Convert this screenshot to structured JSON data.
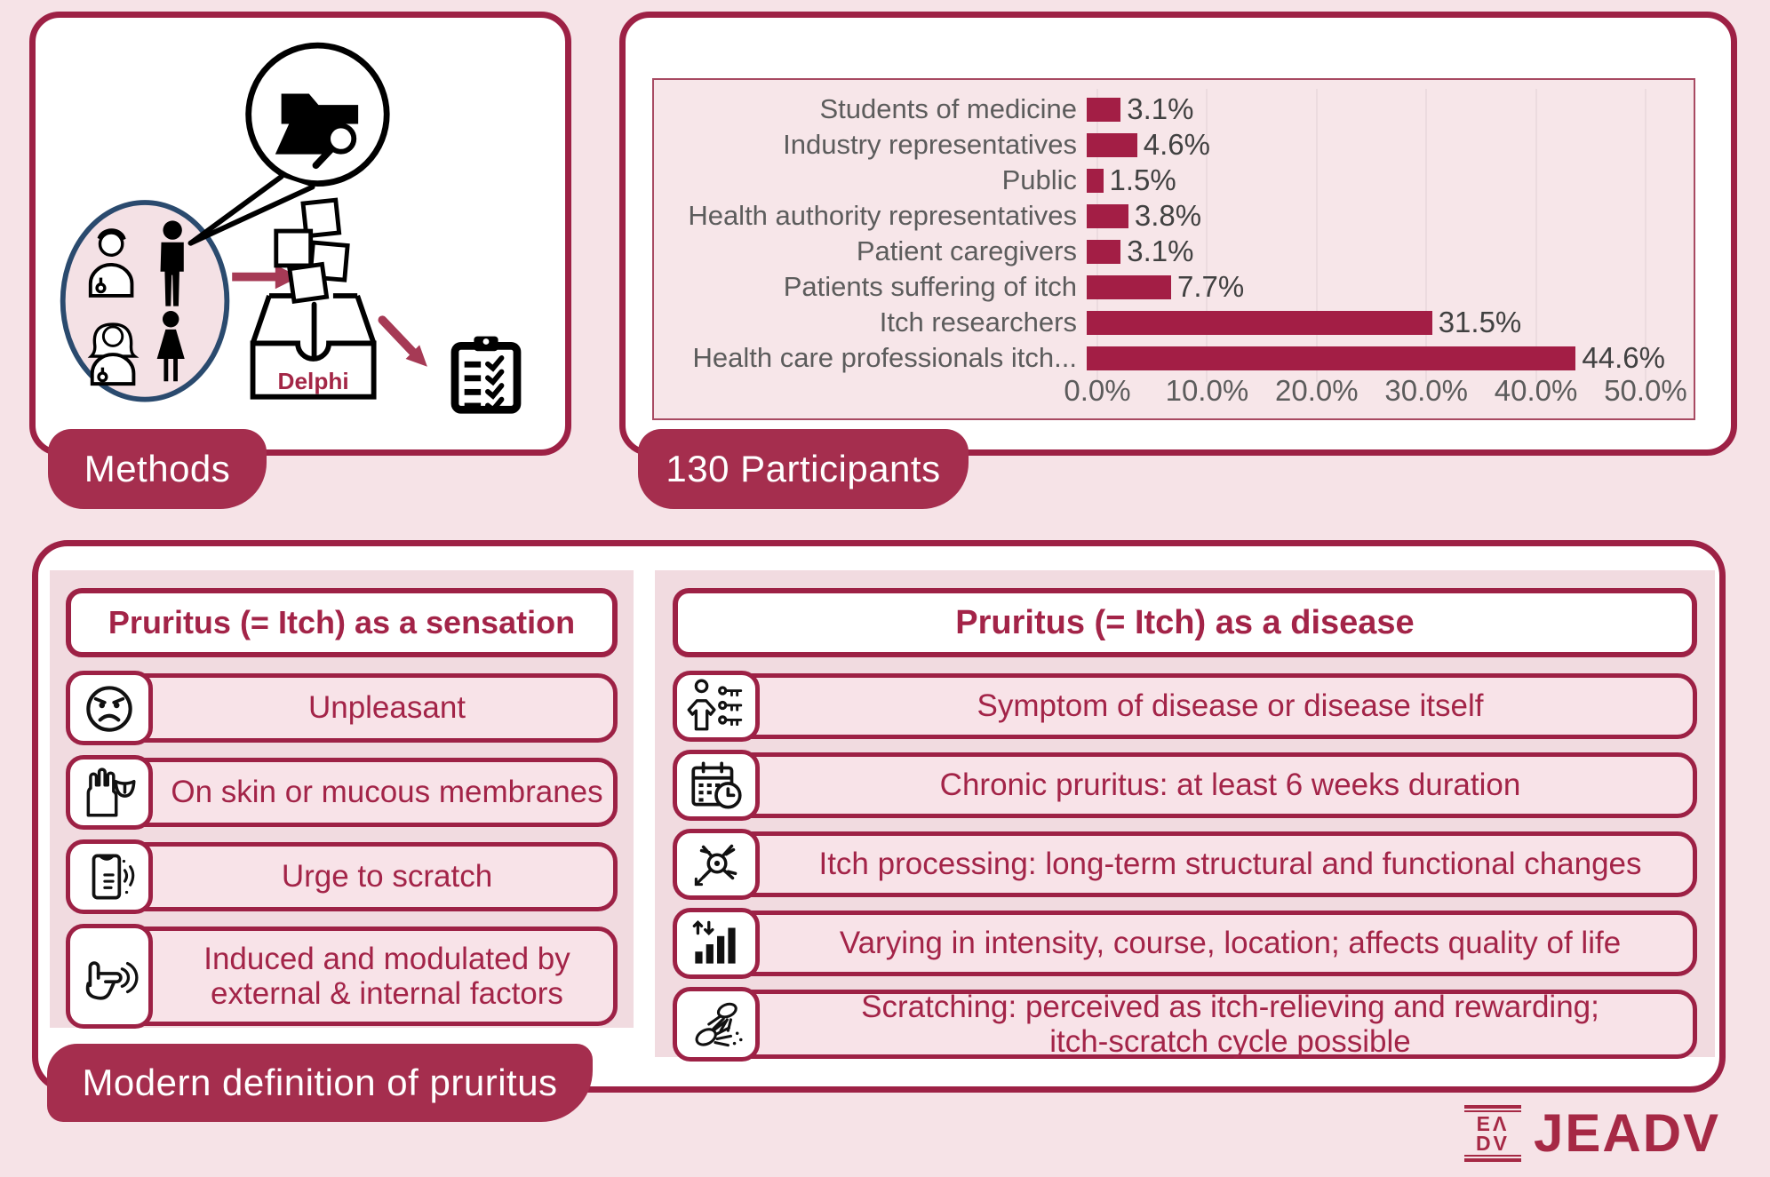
{
  "page": {
    "background": "#f6e3e7",
    "accent_border": "#9d2145",
    "badge_color": "#a52e4e",
    "bar_color": "#a31e45",
    "text_crimson": "#a32448"
  },
  "methods": {
    "badge_label": "Methods",
    "delphi_label": "Delphi",
    "illustration_icons": [
      "stakeholders-circle-icon",
      "doctor-male-icon",
      "patient-male-icon",
      "doctor-female-icon",
      "patient-female-icon",
      "literature-search-bubble-icon",
      "folder-search-icon",
      "sticky-notes-icon",
      "arrow-right-icon",
      "arrow-down-icon",
      "delphi-inbox-icon",
      "arrow-diagonal-icon",
      "checklist-clipboard-icon"
    ]
  },
  "participants": {
    "badge_label": "130 Participants"
  },
  "chart_data": {
    "type": "bar",
    "orientation": "horizontal",
    "title": "",
    "xlabel": "",
    "ylabel": "",
    "xlim": [
      0,
      50
    ],
    "grid": true,
    "legend": "none",
    "categories": [
      "Students of medicine",
      "Industry representatives",
      "Public",
      "Health authority representatives",
      "Patient caregivers",
      "Patients suffering of itch",
      "Itch researchers",
      "Health care professionals itch..."
    ],
    "values": [
      3.1,
      4.6,
      1.5,
      3.8,
      3.1,
      7.7,
      31.5,
      44.6
    ],
    "value_labels": [
      "3.1%",
      "4.6%",
      "1.5%",
      "3.8%",
      "3.1%",
      "7.7%",
      "31.5%",
      "44.6%"
    ],
    "x_ticks": [
      0,
      10,
      20,
      30,
      40,
      50
    ],
    "x_tick_labels": [
      "0.0%",
      "10.0%",
      "20.0%",
      "30.0%",
      "40.0%",
      "50.0%"
    ],
    "bar_color": "#a31e45"
  },
  "definition": {
    "badge_label": "Modern definition of pruritus",
    "sensation": {
      "title": "Pruritus (= Itch) as a sensation",
      "items": [
        {
          "icon": "angry-face-icon",
          "text": "Unpleasant",
          "tall": false
        },
        {
          "icon": "hand-tongue-icon",
          "text": "On skin or mucous membranes",
          "tall": false
        },
        {
          "icon": "scratch-shirt-icon",
          "text": "Urge to scratch",
          "tall": false
        },
        {
          "icon": "touch-press-icon",
          "text": "Induced and modulated by\nexternal & internal factors",
          "tall": true
        }
      ]
    },
    "disease": {
      "title": "Pruritus (= Itch) as a disease",
      "items": [
        {
          "icon": "patient-symptom-list-icon",
          "text": "Symptom of disease or disease itself",
          "tall": false
        },
        {
          "icon": "calendar-clock-icon",
          "text": "Chronic pruritus: at least 6 weeks duration",
          "tall": false
        },
        {
          "icon": "neuron-icon",
          "text": "Itch processing: long-term structural and functional changes",
          "tall": false
        },
        {
          "icon": "intensity-bars-icon",
          "text": "Varying in intensity, course, location; affects quality of life",
          "tall": false
        },
        {
          "icon": "scratching-hands-icon",
          "text": "Scratching: perceived as itch-relieving and rewarding;\nitch-scratch cycle possible",
          "tall": true
        }
      ]
    }
  },
  "footer": {
    "logo_row1": "EΛ",
    "logo_row2": "DV",
    "journal": "JEADV"
  }
}
